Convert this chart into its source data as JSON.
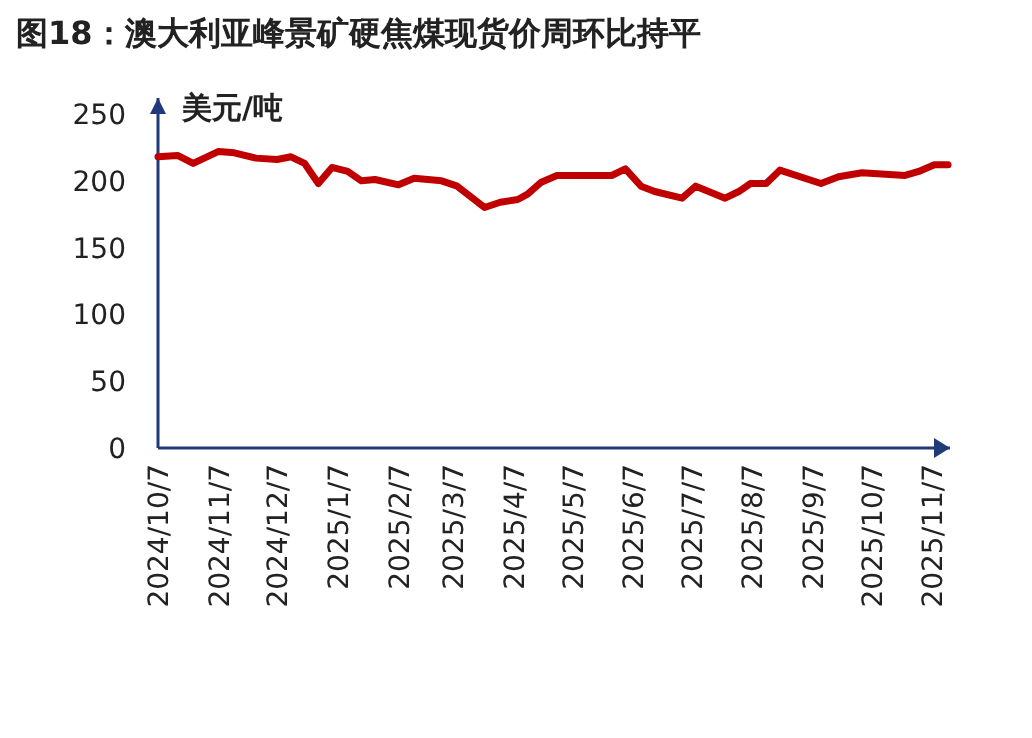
{
  "chart_data": {
    "type": "line",
    "title": "图18：澳大利亚峰景矿硬焦煤现货价周环比持平",
    "ylabel": "美元/吨",
    "x": [
      "2024-10-07",
      "2024-10-17",
      "2024-10-25",
      "2024-11-07",
      "2024-11-15",
      "2024-11-26",
      "2024-12-07",
      "2024-12-14",
      "2024-12-21",
      "2024-12-28",
      "2025-01-04",
      "2025-01-12",
      "2025-01-19",
      "2025-01-26",
      "2025-02-07",
      "2025-02-15",
      "2025-03-01",
      "2025-03-09",
      "2025-03-23",
      "2025-03-31",
      "2025-04-09",
      "2025-04-14",
      "2025-04-21",
      "2025-04-29",
      "2025-05-27",
      "2025-06-03",
      "2025-06-11",
      "2025-06-18",
      "2025-07-02",
      "2025-07-09",
      "2025-07-24",
      "2025-07-31",
      "2025-08-06",
      "2025-08-14",
      "2025-08-21",
      "2025-09-11",
      "2025-09-20",
      "2025-10-02",
      "2025-10-24",
      "2025-10-31",
      "2025-11-08",
      "2025-11-15"
    ],
    "series": [
      {
        "color": "#c00000",
        "values": [
          218,
          219,
          213,
          222,
          221,
          217,
          216,
          218,
          213,
          198,
          210,
          207,
          200,
          201,
          197,
          202,
          200,
          196,
          180,
          184,
          186,
          190,
          199,
          204,
          204,
          209,
          196,
          192,
          187,
          196,
          187,
          192,
          198,
          198,
          208,
          198,
          203,
          206,
          204,
          207,
          212,
          212
        ]
      }
    ],
    "xlim": [
      "2024-10-07",
      "2025-11-16"
    ],
    "xticks": [
      {
        "value": "2024-10-07",
        "label": "2024/10/7"
      },
      {
        "value": "2024-11-07",
        "label": "2024/11/7"
      },
      {
        "value": "2024-12-07",
        "label": "2024/12/7"
      },
      {
        "value": "2025-01-07",
        "label": "2025/1/7"
      },
      {
        "value": "2025-02-07",
        "label": "2025/2/7"
      },
      {
        "value": "2025-03-07",
        "label": "2025/3/7"
      },
      {
        "value": "2025-04-07",
        "label": "2025/4/7"
      },
      {
        "value": "2025-05-07",
        "label": "2025/5/7"
      },
      {
        "value": "2025-06-07",
        "label": "2025/6/7"
      },
      {
        "value": "2025-07-07",
        "label": "2025/7/7"
      },
      {
        "value": "2025-08-07",
        "label": "2025/8/7"
      },
      {
        "value": "2025-09-07",
        "label": "2025/9/7"
      },
      {
        "value": "2025-10-07",
        "label": "2025/10/7"
      },
      {
        "value": "2025-11-07",
        "label": "2025/11/7"
      }
    ],
    "ylim": [
      0,
      262
    ],
    "yticks": [
      0,
      50,
      100,
      150,
      200,
      250
    ],
    "grid": false,
    "marker": "none",
    "line_style": "solid"
  }
}
